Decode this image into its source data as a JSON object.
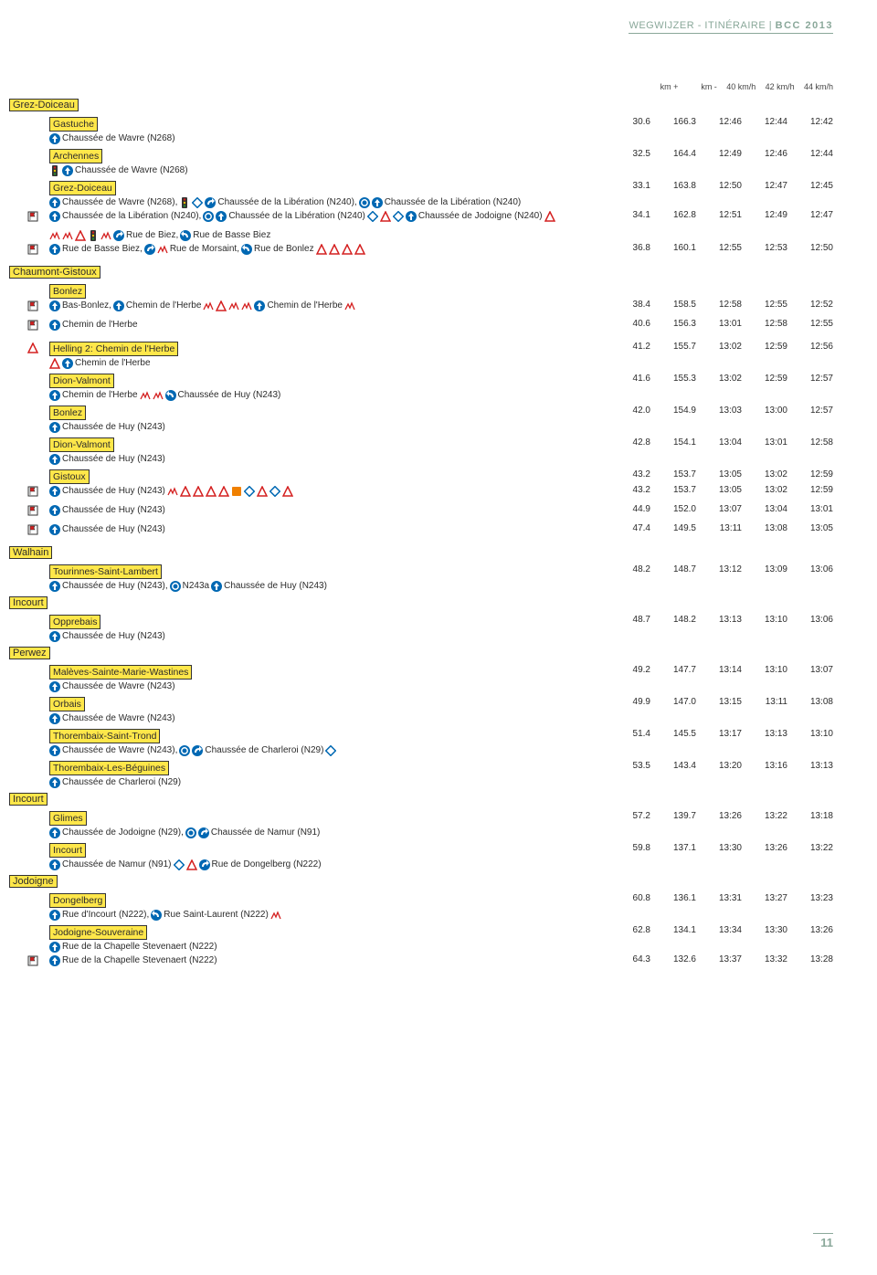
{
  "header": {
    "prefix": "WEGWIJZER - ITINÉRAIRE | ",
    "title": "BCC 2013"
  },
  "columns": [
    "km +",
    "km -",
    "40 km/h",
    "42 km/h",
    "44 km/h"
  ],
  "page_number": "11",
  "colors": {
    "accent": "#8aa89a",
    "highlight": "#ffe74a",
    "blue": "#0068b3",
    "red": "#d42020",
    "orange": "#f08000"
  },
  "rows": [
    {
      "type": "muni",
      "label": "Grez-Doiceau"
    },
    {
      "type": "loc",
      "label": "Gastuche",
      "v": [
        "30.6",
        "166.3",
        "12:46",
        "12:44",
        "12:42"
      ]
    },
    {
      "type": "det",
      "icons": [
        [
          "up"
        ]
      ],
      "segs": [
        [
          "",
          "Chaussée de Wavre (N268)"
        ]
      ]
    },
    {
      "type": "loc",
      "label": "Archennes",
      "v": [
        "32.5",
        "164.4",
        "12:49",
        "12:46",
        "12:44"
      ]
    },
    {
      "type": "det",
      "icons": [
        [
          "light"
        ],
        [
          "up"
        ]
      ],
      "segs": [
        [
          "",
          "Chaussée de Wavre (N268)"
        ]
      ]
    },
    {
      "type": "loc",
      "label": "Grez-Doiceau",
      "v": [
        "33.1",
        "163.8",
        "12:50",
        "12:47",
        "12:45"
      ]
    },
    {
      "type": "det",
      "icons": [
        [
          "up"
        ]
      ],
      "segs": [
        [
          "",
          "Chaussée de Wavre (N268), "
        ],
        [
          "light",
          ""
        ],
        [
          "prio",
          ""
        ],
        [
          "rndR",
          ""
        ],
        [
          "",
          "Chaussée de la Libération (N240), "
        ],
        [
          "rnd",
          ""
        ],
        [
          "up",
          ""
        ],
        [
          "",
          "Chaussée de la Libération (N240)"
        ]
      ]
    },
    {
      "type": "det",
      "left": "fl",
      "icons": [
        [
          "up"
        ]
      ],
      "segs": [
        [
          "",
          "Chaussée de la Libération (N240), "
        ],
        [
          "rnd",
          ""
        ],
        [
          "up",
          ""
        ],
        [
          "",
          "Chaussée de la Libération (N240) "
        ],
        [
          "prio",
          ""
        ],
        [
          "tri",
          ""
        ],
        [
          "prio",
          ""
        ],
        [
          "up",
          ""
        ],
        [
          "",
          "Chaussée de Jodoigne (N240) "
        ],
        [
          "tri",
          ""
        ]
      ],
      "v": [
        "34.1",
        "162.8",
        "12:51",
        "12:49",
        "12:47"
      ]
    },
    {
      "type": "det",
      "indent": true,
      "icons": [],
      "segs": [
        [
          "cob",
          ""
        ],
        [
          "cob",
          ""
        ],
        [
          "tri",
          ""
        ],
        [
          "light",
          ""
        ],
        [
          "cob",
          ""
        ],
        [
          "rndR",
          ""
        ],
        [
          "",
          "Rue de Biez, "
        ],
        [
          "rndL",
          ""
        ],
        [
          "",
          "Rue de Basse Biez"
        ]
      ]
    },
    {
      "type": "det",
      "left": "fl",
      "icons": [
        [
          "up"
        ]
      ],
      "segs": [
        [
          "",
          "Rue de Basse Biez, "
        ],
        [
          "rndR",
          ""
        ],
        [
          "cob",
          ""
        ],
        [
          "",
          "Rue de Morsaint, "
        ],
        [
          "rndL",
          ""
        ],
        [
          "",
          "  Rue de Bonlez "
        ],
        [
          "tri",
          ""
        ],
        [
          "tri",
          ""
        ],
        [
          "tri",
          ""
        ],
        [
          "tri",
          ""
        ]
      ],
      "v": [
        "36.8",
        "160.1",
        "12:55",
        "12:53",
        "12:50"
      ]
    },
    {
      "type": "muni",
      "label": "Chaumont-Gistoux"
    },
    {
      "type": "loc",
      "label": "Bonlez"
    },
    {
      "type": "det",
      "left": "fl",
      "icons": [
        [
          "up"
        ]
      ],
      "segs": [
        [
          "",
          "Bas-Bonlez, "
        ],
        [
          "up",
          ""
        ],
        [
          "",
          "Chemin de l'Herbe "
        ],
        [
          "cob",
          ""
        ],
        [
          "tri",
          ""
        ],
        [
          "cob",
          ""
        ],
        [
          "cob",
          ""
        ],
        [
          "up",
          ""
        ],
        [
          "",
          "Chemin de l'Herbe "
        ],
        [
          "cob",
          ""
        ]
      ],
      "v": [
        "38.4",
        "158.5",
        "12:58",
        "12:55",
        "12:52"
      ]
    },
    {
      "type": "det",
      "left": "fl",
      "icons": [
        [
          "up"
        ]
      ],
      "segs": [
        [
          "",
          "Chemin de l'Herbe"
        ]
      ],
      "v": [
        "40.6",
        "156.3",
        "13:01",
        "12:58",
        "12:55"
      ]
    },
    {
      "type": "hill",
      "left": "tri",
      "label": "Helling 2: Chemin de l'Herbe",
      "v": [
        "41.2",
        "155.7",
        "13:02",
        "12:59",
        "12:56"
      ]
    },
    {
      "type": "det",
      "indent": true,
      "icons": [
        [
          "tri"
        ],
        [
          "up"
        ]
      ],
      "segs": [
        [
          "",
          "Chemin de l'Herbe"
        ]
      ]
    },
    {
      "type": "loc",
      "label": "Dion-Valmont",
      "v": [
        "41.6",
        "155.3",
        "13:02",
        "12:59",
        "12:57"
      ]
    },
    {
      "type": "det",
      "icons": [
        [
          "up"
        ]
      ],
      "segs": [
        [
          "",
          "Chemin de l'Herbe "
        ],
        [
          "cob",
          ""
        ],
        [
          "cob",
          ""
        ],
        [
          "rndL",
          ""
        ],
        [
          "",
          "Chaussée de Huy (N243)"
        ]
      ]
    },
    {
      "type": "loc",
      "label": "Bonlez",
      "v": [
        "42.0",
        "154.9",
        "13:03",
        "13:00",
        "12:57"
      ]
    },
    {
      "type": "det",
      "icons": [
        [
          "up"
        ]
      ],
      "segs": [
        [
          "",
          "Chaussée de Huy (N243)"
        ]
      ]
    },
    {
      "type": "loc",
      "label": "Dion-Valmont",
      "v": [
        "42.8",
        "154.1",
        "13:04",
        "13:01",
        "12:58"
      ]
    },
    {
      "type": "det",
      "icons": [
        [
          "up"
        ]
      ],
      "segs": [
        [
          "",
          "Chaussée de Huy (N243)"
        ]
      ]
    },
    {
      "type": "loc",
      "label": "Gistoux",
      "v": [
        "43.2",
        "153.7",
        "13:05",
        "13:02",
        "12:59"
      ]
    },
    {
      "type": "det",
      "left": "fl",
      "icons": [
        [
          "up"
        ]
      ],
      "segs": [
        [
          "",
          "Chaussée de Huy (N243) "
        ],
        [
          "cob",
          ""
        ],
        [
          "tri",
          ""
        ],
        [
          "tri",
          ""
        ],
        [
          "tri",
          ""
        ],
        [
          "tri",
          ""
        ],
        [
          "sq",
          ""
        ],
        [
          "prio",
          ""
        ],
        [
          "tri",
          ""
        ],
        [
          "prio",
          ""
        ],
        [
          "tri",
          ""
        ]
      ],
      "v": [
        "43.2",
        "153.7",
        "13:05",
        "13:02",
        "12:59"
      ]
    },
    {
      "type": "det",
      "left": "fl",
      "icons": [
        [
          "up"
        ]
      ],
      "segs": [
        [
          "",
          "Chaussée de Huy (N243)"
        ]
      ],
      "v": [
        "44.9",
        "152.0",
        "13:07",
        "13:04",
        "13:01"
      ]
    },
    {
      "type": "det",
      "left": "fl",
      "icons": [
        [
          "up"
        ]
      ],
      "segs": [
        [
          "",
          "Chaussée de Huy (N243)"
        ]
      ],
      "v": [
        "47.4",
        "149.5",
        "13:11",
        "13:08",
        "13:05"
      ]
    },
    {
      "type": "muni",
      "label": "Walhain"
    },
    {
      "type": "loc",
      "label": "Tourinnes-Saint-Lambert",
      "v": [
        "48.2",
        "148.7",
        "13:12",
        "13:09",
        "13:06"
      ]
    },
    {
      "type": "det",
      "icons": [
        [
          "up"
        ]
      ],
      "segs": [
        [
          "",
          "Chaussée de Huy (N243), "
        ],
        [
          "rnd",
          ""
        ],
        [
          "",
          "N243a "
        ],
        [
          "up",
          ""
        ],
        [
          "",
          "Chaussée de Huy (N243)"
        ]
      ]
    },
    {
      "type": "muni",
      "label": "Incourt"
    },
    {
      "type": "loc",
      "label": "Opprebais",
      "v": [
        "48.7",
        "148.2",
        "13:13",
        "13:10",
        "13:06"
      ]
    },
    {
      "type": "det",
      "icons": [
        [
          "up"
        ]
      ],
      "segs": [
        [
          "",
          "Chaussée de Huy (N243)"
        ]
      ]
    },
    {
      "type": "muni",
      "label": "Perwez"
    },
    {
      "type": "loc",
      "label": "Malèves-Sainte-Marie-Wastines",
      "v": [
        "49.2",
        "147.7",
        "13:14",
        "13:10",
        "13:07"
      ]
    },
    {
      "type": "det",
      "icons": [
        [
          "up"
        ]
      ],
      "segs": [
        [
          "",
          "Chaussée de Wavre (N243)"
        ]
      ]
    },
    {
      "type": "loc",
      "label": "Orbais",
      "v": [
        "49.9",
        "147.0",
        "13:15",
        "13:11",
        "13:08"
      ]
    },
    {
      "type": "det",
      "icons": [
        [
          "up"
        ]
      ],
      "segs": [
        [
          "",
          "Chaussée de Wavre (N243)"
        ]
      ]
    },
    {
      "type": "loc",
      "label": "Thorembaix-Saint-Trond",
      "v": [
        "51.4",
        "145.5",
        "13:17",
        "13:13",
        "13:10"
      ]
    },
    {
      "type": "det",
      "icons": [
        [
          "up"
        ]
      ],
      "segs": [
        [
          "",
          "Chaussée de Wavre (N243), "
        ],
        [
          "rnd",
          ""
        ],
        [
          "rndR",
          ""
        ],
        [
          "",
          "Chaussée de Charleroi (N29) "
        ],
        [
          "prio",
          ""
        ]
      ]
    },
    {
      "type": "loc",
      "label": "Thorembaix-Les-Béguines",
      "v": [
        "53.5",
        "143.4",
        "13:20",
        "13:16",
        "13:13"
      ]
    },
    {
      "type": "det",
      "icons": [
        [
          "up"
        ]
      ],
      "segs": [
        [
          "",
          "Chaussée de Charleroi (N29)"
        ]
      ]
    },
    {
      "type": "muni",
      "label": "Incourt"
    },
    {
      "type": "loc",
      "label": "Glimes",
      "v": [
        "57.2",
        "139.7",
        "13:26",
        "13:22",
        "13:18"
      ]
    },
    {
      "type": "det",
      "icons": [
        [
          "up"
        ]
      ],
      "segs": [
        [
          "",
          "Chaussée de Jodoigne (N29), "
        ],
        [
          "rnd",
          ""
        ],
        [
          "rndR",
          ""
        ],
        [
          "",
          "Chaussée de Namur (N91)"
        ]
      ]
    },
    {
      "type": "loc",
      "label": "Incourt",
      "v": [
        "59.8",
        "137.1",
        "13:30",
        "13:26",
        "13:22"
      ]
    },
    {
      "type": "det",
      "icons": [
        [
          "up"
        ]
      ],
      "segs": [
        [
          "",
          "Chaussée de Namur (N91) "
        ],
        [
          "prio",
          ""
        ],
        [
          "tri",
          ""
        ],
        [
          "rndR",
          ""
        ],
        [
          "",
          "Rue de Dongelberg (N222)"
        ]
      ]
    },
    {
      "type": "muni",
      "label": "Jodoigne"
    },
    {
      "type": "loc",
      "label": "Dongelberg",
      "v": [
        "60.8",
        "136.1",
        "13:31",
        "13:27",
        "13:23"
      ]
    },
    {
      "type": "det",
      "icons": [
        [
          "up"
        ]
      ],
      "segs": [
        [
          "",
          "Rue d'Incourt (N222), "
        ],
        [
          "rndL",
          ""
        ],
        [
          "",
          "Rue Saint-Laurent (N222) "
        ],
        [
          "cob",
          ""
        ]
      ]
    },
    {
      "type": "loc",
      "label": "Jodoigne-Souveraine",
      "v": [
        "62.8",
        "134.1",
        "13:34",
        "13:30",
        "13:26"
      ]
    },
    {
      "type": "det",
      "icons": [
        [
          "up"
        ]
      ],
      "segs": [
        [
          "",
          "Rue de la Chapelle Stevenaert (N222)"
        ]
      ]
    },
    {
      "type": "det",
      "left": "fl",
      "icons": [
        [
          "up"
        ]
      ],
      "segs": [
        [
          "",
          "Rue de la Chapelle Stevenaert (N222)"
        ]
      ],
      "v": [
        "64.3",
        "132.6",
        "13:37",
        "13:32",
        "13:28"
      ]
    }
  ]
}
